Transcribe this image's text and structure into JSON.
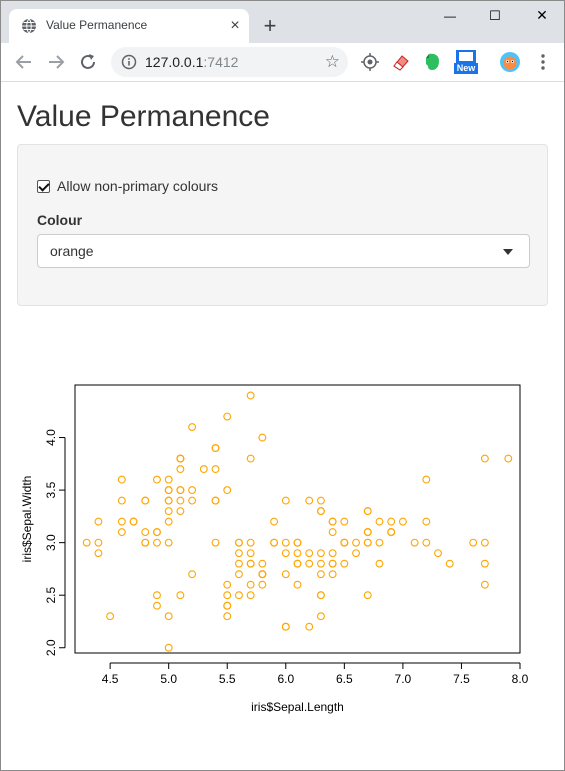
{
  "browser": {
    "tab_title": "Value Permanence",
    "tab_close": "×",
    "new_tab": "+",
    "url_host": "127.0.0.1",
    "url_port": ":7412",
    "star": "☆",
    "minimize": "—",
    "maximize": "☐",
    "close": "✕",
    "new_badge": "New"
  },
  "app": {
    "title": "Value Permanence",
    "checkbox_label": "Allow non-primary colours",
    "checkbox_checked": true,
    "select_label": "Colour",
    "select_value": "orange"
  },
  "chart_data": {
    "type": "scatter",
    "xlabel": "iris$Sepal.Length",
    "ylabel": "iris$Sepal.Width",
    "xlim": [
      4.2,
      8.0
    ],
    "ylim": [
      1.95,
      4.5
    ],
    "xticks": [
      4.5,
      5.0,
      5.5,
      6.0,
      6.5,
      7.0,
      7.5,
      8.0
    ],
    "xtick_labels": [
      "4.5",
      "5.0",
      "5.5",
      "6.0",
      "6.5",
      "7.0",
      "7.5",
      "8.0"
    ],
    "yticks": [
      2.0,
      2.5,
      3.0,
      3.5,
      4.0
    ],
    "ytick_labels": [
      "2.0",
      "2.5",
      "3.0",
      "3.5",
      "4.0"
    ],
    "point_color": "#FFA500",
    "points": [
      [
        5.1,
        3.5
      ],
      [
        4.9,
        3.0
      ],
      [
        4.7,
        3.2
      ],
      [
        4.6,
        3.1
      ],
      [
        5.0,
        3.6
      ],
      [
        5.4,
        3.9
      ],
      [
        4.6,
        3.4
      ],
      [
        5.0,
        3.4
      ],
      [
        4.4,
        2.9
      ],
      [
        4.9,
        3.1
      ],
      [
        5.4,
        3.7
      ],
      [
        4.8,
        3.4
      ],
      [
        4.8,
        3.0
      ],
      [
        4.3,
        3.0
      ],
      [
        5.8,
        4.0
      ],
      [
        5.7,
        4.4
      ],
      [
        5.4,
        3.9
      ],
      [
        5.1,
        3.5
      ],
      [
        5.7,
        3.8
      ],
      [
        5.1,
        3.8
      ],
      [
        5.4,
        3.4
      ],
      [
        5.1,
        3.7
      ],
      [
        4.6,
        3.6
      ],
      [
        5.1,
        3.3
      ],
      [
        4.8,
        3.4
      ],
      [
        5.0,
        3.0
      ],
      [
        5.0,
        3.4
      ],
      [
        5.2,
        3.5
      ],
      [
        5.2,
        3.4
      ],
      [
        4.7,
        3.2
      ],
      [
        4.8,
        3.1
      ],
      [
        5.4,
        3.4
      ],
      [
        5.2,
        4.1
      ],
      [
        5.5,
        4.2
      ],
      [
        4.9,
        3.1
      ],
      [
        5.0,
        3.2
      ],
      [
        5.5,
        3.5
      ],
      [
        4.9,
        3.6
      ],
      [
        4.4,
        3.0
      ],
      [
        5.1,
        3.4
      ],
      [
        5.0,
        3.5
      ],
      [
        4.5,
        2.3
      ],
      [
        4.4,
        3.2
      ],
      [
        5.0,
        3.5
      ],
      [
        5.1,
        3.8
      ],
      [
        4.8,
        3.0
      ],
      [
        5.1,
        3.8
      ],
      [
        4.6,
        3.2
      ],
      [
        5.3,
        3.7
      ],
      [
        5.0,
        3.3
      ],
      [
        7.0,
        3.2
      ],
      [
        6.4,
        3.2
      ],
      [
        6.9,
        3.1
      ],
      [
        5.5,
        2.3
      ],
      [
        6.5,
        2.8
      ],
      [
        5.7,
        2.8
      ],
      [
        6.3,
        3.3
      ],
      [
        4.9,
        2.4
      ],
      [
        6.6,
        2.9
      ],
      [
        5.2,
        2.7
      ],
      [
        5.0,
        2.0
      ],
      [
        5.9,
        3.0
      ],
      [
        6.0,
        2.2
      ],
      [
        6.1,
        2.9
      ],
      [
        5.6,
        2.9
      ],
      [
        6.7,
        3.1
      ],
      [
        5.6,
        3.0
      ],
      [
        5.8,
        2.7
      ],
      [
        6.2,
        2.2
      ],
      [
        5.6,
        2.5
      ],
      [
        5.9,
        3.2
      ],
      [
        6.1,
        2.8
      ],
      [
        6.3,
        2.5
      ],
      [
        6.1,
        2.8
      ],
      [
        6.4,
        2.9
      ],
      [
        6.6,
        3.0
      ],
      [
        6.8,
        2.8
      ],
      [
        6.7,
        3.0
      ],
      [
        6.0,
        2.9
      ],
      [
        5.7,
        2.6
      ],
      [
        5.5,
        2.4
      ],
      [
        5.5,
        2.4
      ],
      [
        5.8,
        2.7
      ],
      [
        6.0,
        2.7
      ],
      [
        5.4,
        3.0
      ],
      [
        6.0,
        3.4
      ],
      [
        6.7,
        3.1
      ],
      [
        6.3,
        2.3
      ],
      [
        5.6,
        3.0
      ],
      [
        5.5,
        2.5
      ],
      [
        5.5,
        2.6
      ],
      [
        6.1,
        3.0
      ],
      [
        5.8,
        2.6
      ],
      [
        5.0,
        2.3
      ],
      [
        5.6,
        2.7
      ],
      [
        5.7,
        3.0
      ],
      [
        5.7,
        2.9
      ],
      [
        6.2,
        2.9
      ],
      [
        5.1,
        2.5
      ],
      [
        5.7,
        2.8
      ],
      [
        6.3,
        3.3
      ],
      [
        5.8,
        2.7
      ],
      [
        7.1,
        3.0
      ],
      [
        6.3,
        2.9
      ],
      [
        6.5,
        3.0
      ],
      [
        7.6,
        3.0
      ],
      [
        4.9,
        2.5
      ],
      [
        7.3,
        2.9
      ],
      [
        6.7,
        2.5
      ],
      [
        7.2,
        3.6
      ],
      [
        6.5,
        3.2
      ],
      [
        6.4,
        2.7
      ],
      [
        6.8,
        3.0
      ],
      [
        5.7,
        2.5
      ],
      [
        5.8,
        2.8
      ],
      [
        6.4,
        3.2
      ],
      [
        6.5,
        3.0
      ],
      [
        7.7,
        3.8
      ],
      [
        7.7,
        2.6
      ],
      [
        6.0,
        2.2
      ],
      [
        6.9,
        3.2
      ],
      [
        5.6,
        2.8
      ],
      [
        7.7,
        2.8
      ],
      [
        6.3,
        2.7
      ],
      [
        6.7,
        3.3
      ],
      [
        7.2,
        3.2
      ],
      [
        6.2,
        2.8
      ],
      [
        6.1,
        3.0
      ],
      [
        6.4,
        2.8
      ],
      [
        7.2,
        3.0
      ],
      [
        7.4,
        2.8
      ],
      [
        7.9,
        3.8
      ],
      [
        6.4,
        2.8
      ],
      [
        6.3,
        2.8
      ],
      [
        6.1,
        2.6
      ],
      [
        7.7,
        3.0
      ],
      [
        6.3,
        3.4
      ],
      [
        6.4,
        3.1
      ],
      [
        6.0,
        3.0
      ],
      [
        6.9,
        3.1
      ],
      [
        6.7,
        3.1
      ],
      [
        6.9,
        3.1
      ],
      [
        5.8,
        2.7
      ],
      [
        6.8,
        3.2
      ],
      [
        6.7,
        3.3
      ],
      [
        6.7,
        3.0
      ],
      [
        6.3,
        2.5
      ],
      [
        6.5,
        3.0
      ],
      [
        6.2,
        3.4
      ],
      [
        5.9,
        3.0
      ]
    ]
  }
}
